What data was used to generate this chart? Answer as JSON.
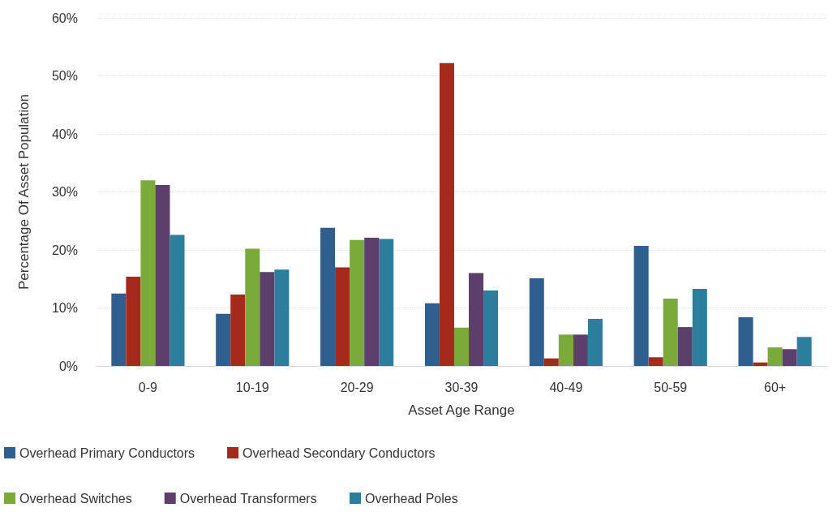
{
  "chart_data": {
    "type": "bar",
    "xlabel": "Asset Age Range",
    "ylabel": "Percentage Of Asset Population",
    "categories": [
      "0-9",
      "10-19",
      "20-29",
      "30-39",
      "40-49",
      "50-59",
      "60+"
    ],
    "series": [
      {
        "name": "Overhead Primary Conductors",
        "color": "#2e5f8f",
        "values": [
          12.5,
          9.0,
          23.8,
          10.8,
          15.1,
          20.7,
          8.4
        ]
      },
      {
        "name": "Overhead Secondary Conductors",
        "color": "#a52a1c",
        "values": [
          15.4,
          12.3,
          17.0,
          52.2,
          1.3,
          1.5,
          0.6
        ]
      },
      {
        "name": "Overhead Switches",
        "color": "#7aab3a",
        "values": [
          32.0,
          20.2,
          21.7,
          6.6,
          5.4,
          11.6,
          3.2
        ]
      },
      {
        "name": "Overhead Transformers",
        "color": "#5c3f6b",
        "values": [
          31.2,
          16.2,
          22.1,
          16.0,
          5.4,
          6.7,
          2.9
        ]
      },
      {
        "name": "Overhead Poles",
        "color": "#2c7f9c",
        "values": [
          22.6,
          16.6,
          21.9,
          13.0,
          8.1,
          13.3,
          5.0
        ]
      }
    ],
    "ylim": [
      0,
      60
    ],
    "yticks": [
      {
        "value": 0,
        "label": "0%"
      },
      {
        "value": 10,
        "label": "10%"
      },
      {
        "value": 20,
        "label": "20%"
      },
      {
        "value": 30,
        "label": "30%"
      },
      {
        "value": 40,
        "label": "40%"
      },
      {
        "value": 50,
        "label": "50%"
      },
      {
        "value": 60,
        "label": "60%"
      }
    ],
    "grid": "y",
    "legend": "bottom"
  }
}
